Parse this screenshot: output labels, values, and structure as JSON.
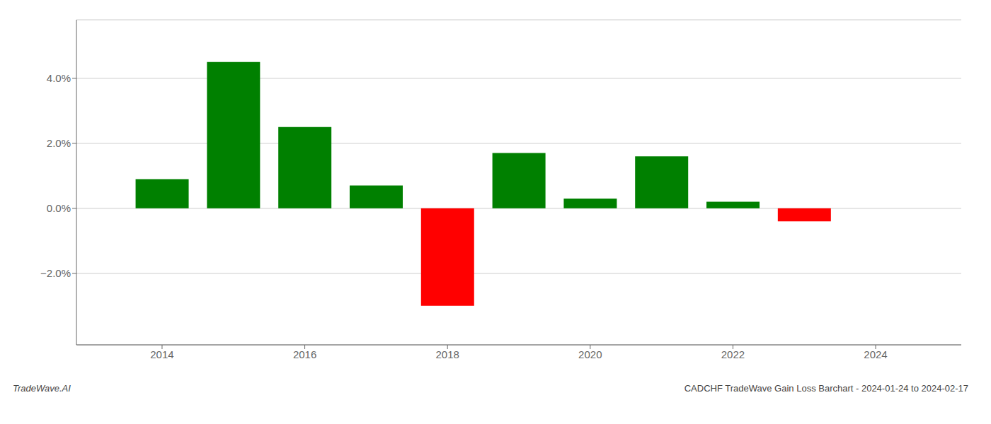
{
  "chart_data": {
    "type": "bar",
    "title": "CADCHF TradeWave Gain Loss Barchart - 2024-01-24 to 2024-02-17",
    "annotations": [
      "TradeWave.AI"
    ],
    "x": [
      2014,
      2015,
      2016,
      2017,
      2018,
      2019,
      2020,
      2021,
      2022,
      2023
    ],
    "values": [
      0.009,
      0.045,
      0.025,
      0.007,
      -0.03,
      0.017,
      0.003,
      0.016,
      0.002,
      -0.004
    ],
    "colors": [
      "#008000",
      "#008000",
      "#008000",
      "#008000",
      "#ff0000",
      "#008000",
      "#008000",
      "#008000",
      "#008000",
      "#ff0000"
    ],
    "xlim": [
      2012.8,
      2025.2
    ],
    "ylim": [
      -0.042,
      0.058
    ],
    "xticks": [
      2014,
      2016,
      2018,
      2020,
      2022,
      2024
    ],
    "yticks": [
      {
        "value": -0.02,
        "label": "−2.0%"
      },
      {
        "value": 0.0,
        "label": "0.0%"
      },
      {
        "value": 0.02,
        "label": "2.0%"
      },
      {
        "value": 0.04,
        "label": "4.0%"
      }
    ],
    "grid": true
  }
}
